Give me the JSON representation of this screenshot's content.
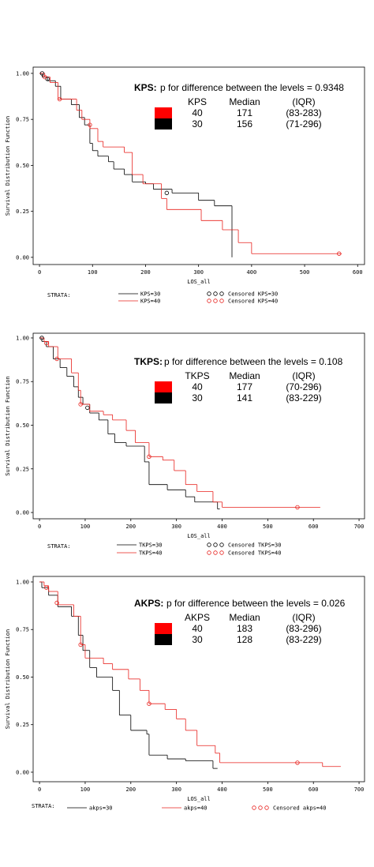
{
  "chart_data": [
    {
      "type": "step",
      "xlabel": "LOS_all",
      "ylabel": "Survival Distribution Function",
      "xlim": [
        -12,
        613
      ],
      "ylim": [
        -0.039,
        1.034
      ],
      "xticks": [
        0,
        100,
        200,
        300,
        400,
        500,
        600
      ],
      "yticks": [
        {
          "value": 0,
          "label": "0.00"
        },
        {
          "value": 0.25,
          "label": "0.25"
        },
        {
          "value": 0.5,
          "label": "0.50"
        },
        {
          "value": 0.75,
          "label": "0.75"
        },
        {
          "value": 1,
          "label": "1.00"
        }
      ],
      "legend_title": "STRATA:",
      "series": [
        {
          "name": "KPS=30",
          "color": "#000000",
          "x": [
            0,
            5,
            15,
            30,
            40,
            60,
            75,
            85,
            95,
            100,
            110,
            130,
            140,
            160,
            175,
            200,
            215,
            250,
            300,
            330,
            363
          ],
          "values": [
            1,
            0.98,
            0.96,
            0.93,
            0.86,
            0.83,
            0.76,
            0.72,
            0.62,
            0.58,
            0.55,
            0.52,
            0.48,
            0.45,
            0.41,
            0.4,
            0.37,
            0.35,
            0.31,
            0.28,
            0
          ]
        },
        {
          "name": "KPS=40",
          "color": "#e8201c",
          "x": [
            0,
            10,
            20,
            35,
            70,
            80,
            95,
            110,
            120,
            160,
            175,
            195,
            230,
            240,
            305,
            345,
            375,
            400,
            570
          ],
          "values": [
            1,
            0.98,
            0.95,
            0.86,
            0.8,
            0.75,
            0.7,
            0.63,
            0.6,
            0.57,
            0.45,
            0.4,
            0.32,
            0.26,
            0.2,
            0.15,
            0.08,
            0.02,
            0.02
          ]
        }
      ],
      "censored": [
        {
          "name": "Censored KPS=30",
          "color": "#000000",
          "x": [
            5,
            15,
            240
          ],
          "values": [
            1,
            0.97,
            0.35
          ]
        },
        {
          "name": "Censored KPS=40",
          "color": "#e8201c",
          "x": [
            10,
            38,
            95,
            565
          ],
          "values": [
            0.98,
            0.86,
            0.72,
            0.02
          ]
        }
      ],
      "annotation": {
        "title": "KPS:",
        "text": "p for difference between the levels = 0.9348",
        "headers": [
          "KPS",
          "Median",
          "(IQR)"
        ],
        "rows": [
          {
            "label": "40",
            "color": "#ff0000",
            "median": 171,
            "iqr": "(83-283)"
          },
          {
            "label": "30",
            "color": "#000000",
            "median": 156,
            "iqr": "(71-296)"
          }
        ]
      }
    },
    {
      "type": "step",
      "xlabel": "LOS_all",
      "ylabel": "Survival Distribution Function",
      "xlim": [
        -14,
        712
      ],
      "ylim": [
        -0.036,
        1.027
      ],
      "xticks": [
        0,
        100,
        200,
        300,
        400,
        500,
        600,
        700
      ],
      "yticks": [
        {
          "value": 0,
          "label": "0.00"
        },
        {
          "value": 0.25,
          "label": "0.25"
        },
        {
          "value": 0.5,
          "label": "0.50"
        },
        {
          "value": 0.75,
          "label": "0.75"
        },
        {
          "value": 1,
          "label": "1.00"
        }
      ],
      "legend_title": "STRATA:",
      "series": [
        {
          "name": "TKPS=30",
          "color": "#000000",
          "x": [
            0,
            5,
            15,
            30,
            45,
            60,
            75,
            85,
            95,
            110,
            130,
            150,
            165,
            190,
            230,
            240,
            280,
            320,
            340,
            390,
            395
          ],
          "values": [
            1,
            0.98,
            0.95,
            0.88,
            0.83,
            0.78,
            0.72,
            0.66,
            0.62,
            0.57,
            0.53,
            0.45,
            0.4,
            0.38,
            0.29,
            0.16,
            0.13,
            0.09,
            0.06,
            0.02,
            0.02
          ]
        },
        {
          "name": "TKPS=40",
          "color": "#e8201c",
          "x": [
            0,
            10,
            20,
            40,
            70,
            85,
            90,
            110,
            140,
            160,
            190,
            210,
            240,
            270,
            295,
            320,
            345,
            380,
            400,
            615
          ],
          "values": [
            1,
            0.98,
            0.95,
            0.88,
            0.8,
            0.7,
            0.62,
            0.58,
            0.56,
            0.53,
            0.47,
            0.4,
            0.32,
            0.3,
            0.24,
            0.16,
            0.12,
            0.06,
            0.03,
            0.03
          ]
        }
      ],
      "censored": [
        {
          "name": "Censored TKPS=30",
          "color": "#000000",
          "x": [
            5,
            105
          ],
          "values": [
            1,
            0.6
          ]
        },
        {
          "name": "Censored TKPS=40",
          "color": "#e8201c",
          "x": [
            15,
            38,
            90,
            240,
            565
          ],
          "values": [
            0.97,
            0.88,
            0.62,
            0.32,
            0.03
          ]
        }
      ],
      "annotation": {
        "title": "TKPS:",
        "text": "p for difference between the levels = 0.108",
        "headers": [
          "TKPS",
          "Median",
          "(IQR)"
        ],
        "rows": [
          {
            "label": "40",
            "color": "#ff0000",
            "median": 177,
            "iqr": "(70-296)"
          },
          {
            "label": "30",
            "color": "#000000",
            "median": 141,
            "iqr": "(83-229)"
          }
        ]
      }
    },
    {
      "type": "step",
      "xlabel": "LOS_all",
      "ylabel": "Survival Distribution Function",
      "xlim": [
        -14,
        712
      ],
      "ylim": [
        -0.05,
        1.029
      ],
      "xticks": [
        0,
        100,
        200,
        300,
        400,
        500,
        600,
        700
      ],
      "yticks": [
        {
          "value": 0,
          "label": "0.00"
        },
        {
          "value": 0.25,
          "label": "0.25"
        },
        {
          "value": 0.5,
          "label": "0.50"
        },
        {
          "value": 0.75,
          "label": "0.75"
        },
        {
          "value": 1,
          "label": "1.00"
        }
      ],
      "legend_title": "STRATA:",
      "series": [
        {
          "name": "akps=30",
          "color": "#000000",
          "x": [
            0,
            5,
            20,
            40,
            70,
            85,
            95,
            110,
            125,
            160,
            175,
            200,
            235,
            240,
            280,
            320,
            380,
            390
          ],
          "values": [
            1,
            0.97,
            0.93,
            0.87,
            0.82,
            0.72,
            0.64,
            0.55,
            0.5,
            0.43,
            0.3,
            0.22,
            0.2,
            0.09,
            0.07,
            0.06,
            0.02,
            0.02
          ]
        },
        {
          "name": "akps=40",
          "color": "#e8201c",
          "x": [
            0,
            10,
            20,
            40,
            75,
            90,
            100,
            140,
            160,
            195,
            220,
            240,
            275,
            300,
            320,
            345,
            385,
            395,
            620,
            660
          ],
          "values": [
            1,
            0.98,
            0.95,
            0.88,
            0.82,
            0.67,
            0.6,
            0.57,
            0.54,
            0.49,
            0.43,
            0.36,
            0.33,
            0.28,
            0.22,
            0.14,
            0.1,
            0.05,
            0.03,
            0.03
          ]
        }
      ],
      "censored": [
        {
          "name": "Censored akps=40",
          "color": "#e8201c",
          "x": [
            15,
            38,
            90,
            240,
            565
          ],
          "values": [
            0.97,
            0.89,
            0.67,
            0.36,
            0.05
          ]
        }
      ],
      "annotation": {
        "title": "AKPS:",
        "text": "p for difference between the levels = 0.026",
        "headers": [
          "AKPS",
          "Median",
          "(IQR)"
        ],
        "rows": [
          {
            "label": "40",
            "color": "#ff0000",
            "median": 183,
            "iqr": "(83-296)"
          },
          {
            "label": "30",
            "color": "#000000",
            "median": 128,
            "iqr": "(83-229)"
          }
        ]
      }
    }
  ]
}
